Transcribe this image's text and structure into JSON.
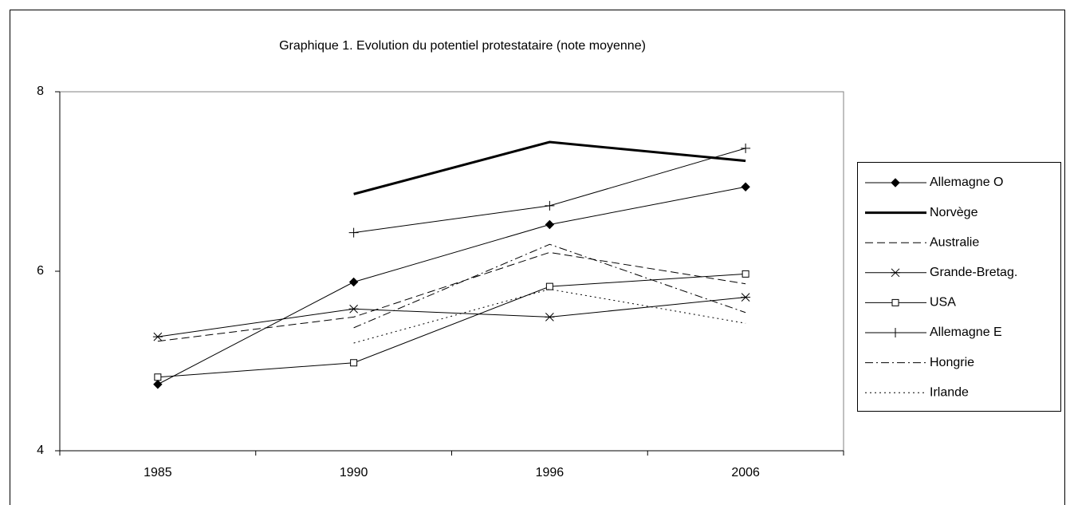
{
  "chart_data": {
    "type": "line",
    "title": "Graphique 1. Evolution du potentiel protestataire (note moyenne)",
    "categories": [
      "1985",
      "1990",
      "1996",
      "2006"
    ],
    "ylim": [
      4,
      8
    ],
    "yticks": [
      4,
      6,
      8
    ],
    "series": [
      {
        "name": "Allemagne O",
        "color": "#000000",
        "dash": "solid",
        "width": 1,
        "marker": "diamond",
        "values": [
          4.74,
          5.88,
          6.52,
          6.94
        ]
      },
      {
        "name": "Norvège",
        "color": "#000000",
        "dash": "solid",
        "width": 3,
        "marker": "none",
        "values": [
          null,
          6.86,
          7.44,
          7.23
        ]
      },
      {
        "name": "Australie",
        "color": "#000000",
        "dash": "dash",
        "width": 1,
        "marker": "none",
        "values": [
          5.22,
          5.49,
          6.21,
          5.86
        ]
      },
      {
        "name": "Grande-Bretag.",
        "color": "#000000",
        "dash": "solid",
        "width": 1,
        "marker": "star",
        "values": [
          5.27,
          5.58,
          5.49,
          5.71
        ]
      },
      {
        "name": "USA",
        "color": "#000000",
        "dash": "solid",
        "width": 1,
        "marker": "square",
        "values": [
          4.82,
          4.98,
          5.83,
          5.97
        ]
      },
      {
        "name": "Allemagne E",
        "color": "#000000",
        "dash": "solid",
        "width": 1,
        "marker": "plus",
        "values": [
          null,
          6.43,
          6.73,
          7.37
        ]
      },
      {
        "name": "Hongrie",
        "color": "#000000",
        "dash": "dashdot",
        "width": 1,
        "marker": "none",
        "values": [
          null,
          5.37,
          6.3,
          5.54
        ]
      },
      {
        "name": "Irlande",
        "color": "#000000",
        "dash": "dot",
        "width": 1,
        "marker": "none",
        "values": [
          null,
          5.2,
          5.8,
          5.42
        ]
      }
    ]
  }
}
